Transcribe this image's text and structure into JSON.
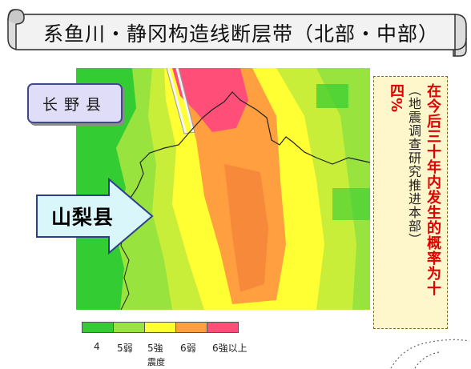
{
  "title": "系鱼川・静冈构造线断层带（北部・中部）",
  "labels": {
    "nagano": "长野县",
    "yamanashi": "山梨县"
  },
  "probability": {
    "main": "在今后三十年内发生的概率为十",
    "main_2": "四%",
    "note": "（地震调查研究推进本部）"
  },
  "legend": {
    "title": "震度",
    "items": [
      {
        "label": "4",
        "color": "#33cc33"
      },
      {
        "label": "5弱",
        "color": "#99e33f"
      },
      {
        "label": "5強",
        "color": "#ffff33"
      },
      {
        "label": "6弱",
        "color": "#ff9f40"
      },
      {
        "label": "6強以上",
        "color": "#ff4f79"
      }
    ]
  },
  "colors": {
    "intensity_4": "#33cc33",
    "intensity_5_lower": "#99e33f",
    "intensity_5_upper": "#ffff33",
    "intensity_6_lower": "#ff9f40",
    "intensity_6_upper_plus": "#ff4f79",
    "probability_text": "#e00000",
    "probability_box": "#fff7cc",
    "nagano_label_bg": "#e0ddf8",
    "yamanashi_arrow": "#d9f6fb"
  }
}
